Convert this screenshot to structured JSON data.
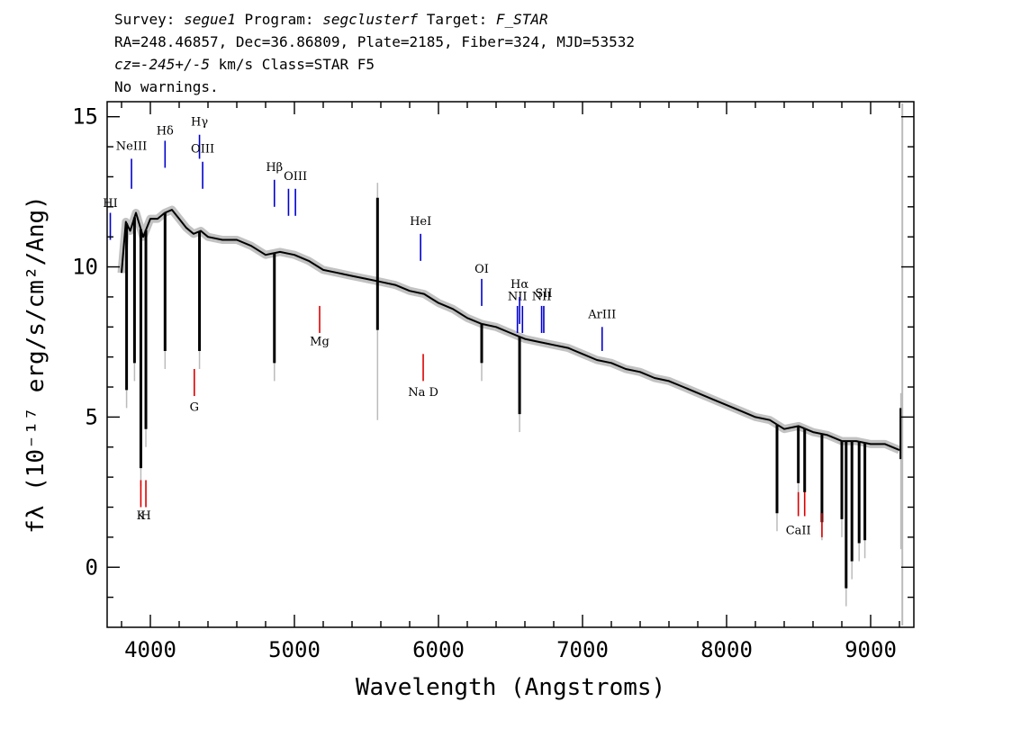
{
  "header": {
    "line1": {
      "p1": "Survey: ",
      "survey": "segue1",
      "p2": " Program: ",
      "program": "segclusterf",
      "p3": " Target: ",
      "target": "F_STAR"
    },
    "line2": "RA=248.46857, Dec=36.86809, Plate=2185, Fiber=324, MJD=53532",
    "line3": {
      "cz": "cz=-245+/-5",
      "rest": " km/s Class=STAR F5"
    },
    "line4": "No warnings."
  },
  "chart_data": {
    "type": "line",
    "xlabel": "Wavelength (Angstroms)",
    "ylabel": "fλ (10⁻¹⁷ erg/s/cm²/Ang)",
    "xlim": [
      3700,
      9300
    ],
    "ylim": [
      -2,
      15.5
    ],
    "x_ticks": [
      4000,
      5000,
      6000,
      7000,
      8000,
      9000
    ],
    "y_ticks": [
      0,
      5,
      10,
      15
    ],
    "grid": false,
    "colors": {
      "flux": "#000000",
      "error": "#bbbbbb",
      "emission": "#0000cc",
      "absorption": "#dd0000"
    },
    "series": [
      {
        "x": [
          3800,
          3830,
          3860,
          3900,
          3950,
          4000,
          4050,
          4100,
          4150,
          4200,
          4250,
          4300,
          4350,
          4400,
          4500,
          4600,
          4700,
          4800,
          4900,
          5000,
          5100,
          5200,
          5300,
          5400,
          5500,
          5600,
          5700,
          5800,
          5900,
          6000,
          6100,
          6200,
          6300,
          6400,
          6500,
          6600,
          6700,
          6800,
          6900,
          7000,
          7100,
          7200,
          7300,
          7400,
          7500,
          7600,
          7700,
          7800,
          7900,
          8000,
          8100,
          8200,
          8300,
          8400,
          8500,
          8600,
          8700,
          8800,
          8900,
          9000,
          9100,
          9200
        ],
        "values": [
          9.8,
          11.5,
          11.2,
          11.8,
          11.0,
          11.6,
          11.6,
          11.8,
          11.9,
          11.6,
          11.3,
          11.1,
          11.2,
          11.0,
          10.9,
          10.9,
          10.7,
          10.4,
          10.5,
          10.4,
          10.2,
          9.9,
          9.8,
          9.7,
          9.6,
          9.5,
          9.4,
          9.2,
          9.1,
          8.8,
          8.6,
          8.3,
          8.1,
          8.0,
          7.8,
          7.6,
          7.5,
          7.4,
          7.3,
          7.1,
          6.9,
          6.8,
          6.6,
          6.5,
          6.3,
          6.2,
          6.0,
          5.8,
          5.6,
          5.4,
          5.2,
          5.0,
          4.9,
          4.6,
          4.7,
          4.5,
          4.4,
          4.2,
          4.2,
          4.1,
          4.1,
          3.9
        ]
      }
    ],
    "absorption_dips": [
      {
        "x": 3835,
        "y": 5.9
      },
      {
        "x": 3890,
        "y": 6.8
      },
      {
        "x": 3934,
        "y": 3.3
      },
      {
        "x": 3969,
        "y": 4.6
      },
      {
        "x": 4102,
        "y": 7.2
      },
      {
        "x": 4341,
        "y": 7.2
      },
      {
        "x": 4861,
        "y": 6.8
      },
      {
        "x": 6300,
        "y": 6.8
      },
      {
        "x": 6563,
        "y": 5.1
      },
      {
        "x": 8350,
        "y": 1.8
      },
      {
        "x": 8498,
        "y": 2.8
      },
      {
        "x": 8542,
        "y": 2.5
      },
      {
        "x": 8662,
        "y": 1.5
      },
      {
        "x": 8800,
        "y": 1.6
      },
      {
        "x": 8830,
        "y": -0.7
      },
      {
        "x": 8870,
        "y": 0.2
      },
      {
        "x": 8920,
        "y": 0.8
      },
      {
        "x": 8960,
        "y": 0.9
      }
    ],
    "spikes": [
      {
        "x": 5577,
        "y0": 7.9,
        "y1": 12.3
      },
      {
        "x": 9210,
        "y0": 3.6,
        "y1": 5.3
      }
    ],
    "emission_lines": [
      {
        "label": "HI",
        "x": 3722,
        "y0": 10.9,
        "y1": 11.8,
        "label_y": 12.0
      },
      {
        "label": "NeIII",
        "x": 3869,
        "y0": 12.6,
        "y1": 13.6,
        "label_y": 13.9
      },
      {
        "label": "Hδ",
        "x": 4102,
        "y0": 13.3,
        "y1": 14.2,
        "label_y": 14.4
      },
      {
        "label": "Hγ",
        "x": 4341,
        "y0": 13.6,
        "y1": 14.4,
        "label_y": 14.7
      },
      {
        "label": "OIII",
        "x": 4363,
        "y0": 12.6,
        "y1": 13.5,
        "label_y": 13.8
      },
      {
        "label": "Hβ",
        "x": 4861,
        "y0": 12.0,
        "y1": 12.9,
        "label_y": 13.2
      },
      {
        "label": "OIII",
        "x": 4959,
        "y0": 11.7,
        "y1": 12.6,
        "label_y": null
      },
      {
        "label": "OIII",
        "x": 5007,
        "y0": 11.7,
        "y1": 12.6,
        "label_y": 12.9
      },
      {
        "label": "HeI",
        "x": 5876,
        "y0": 10.2,
        "y1": 11.1,
        "label_y": 11.4
      },
      {
        "label": "OI",
        "x": 6300,
        "y0": 8.7,
        "y1": 9.6,
        "label_y": 9.8
      },
      {
        "label": "NII",
        "x": 6548,
        "y0": 7.8,
        "y1": 8.7,
        "label_y": 8.9
      },
      {
        "label": "Hα",
        "x": 6563,
        "y0": 8.1,
        "y1": 9.0,
        "label_y": 9.3
      },
      {
        "label": "NII",
        "x": 6583,
        "y0": 7.8,
        "y1": 8.7,
        "label_y": null
      },
      {
        "label": "NII",
        "x": 6716,
        "y0": 7.8,
        "y1": 8.7,
        "label_y": 8.9
      },
      {
        "label": "SII",
        "x": 6731,
        "y0": 7.8,
        "y1": 8.7,
        "label_y": 9.0
      },
      {
        "label": "ArIII",
        "x": 7136,
        "y0": 7.2,
        "y1": 8.0,
        "label_y": 8.3
      }
    ],
    "absorption_lines": [
      {
        "label": "K",
        "x": 3934,
        "y0": 2.0,
        "y1": 2.9,
        "label_y": 1.6
      },
      {
        "label": "H",
        "x": 3969,
        "y0": 2.0,
        "y1": 2.9,
        "label_y": 1.6
      },
      {
        "label": "G",
        "x": 4305,
        "y0": 5.7,
        "y1": 6.6,
        "label_y": 5.2
      },
      {
        "label": "Mg",
        "x": 5175,
        "y0": 7.8,
        "y1": 8.7,
        "label_y": 7.4
      },
      {
        "label": "Na D",
        "x": 5894,
        "y0": 6.2,
        "y1": 7.1,
        "label_y": 5.7
      },
      {
        "label": "CaII",
        "x": 8498,
        "y0": 1.7,
        "y1": 2.5,
        "label_y": 1.1
      },
      {
        "label": "",
        "x": 8542,
        "y0": 1.7,
        "y1": 2.5,
        "label_y": null
      },
      {
        "label": "",
        "x": 8662,
        "y0": 1.0,
        "y1": 1.8,
        "label_y": null
      }
    ]
  }
}
